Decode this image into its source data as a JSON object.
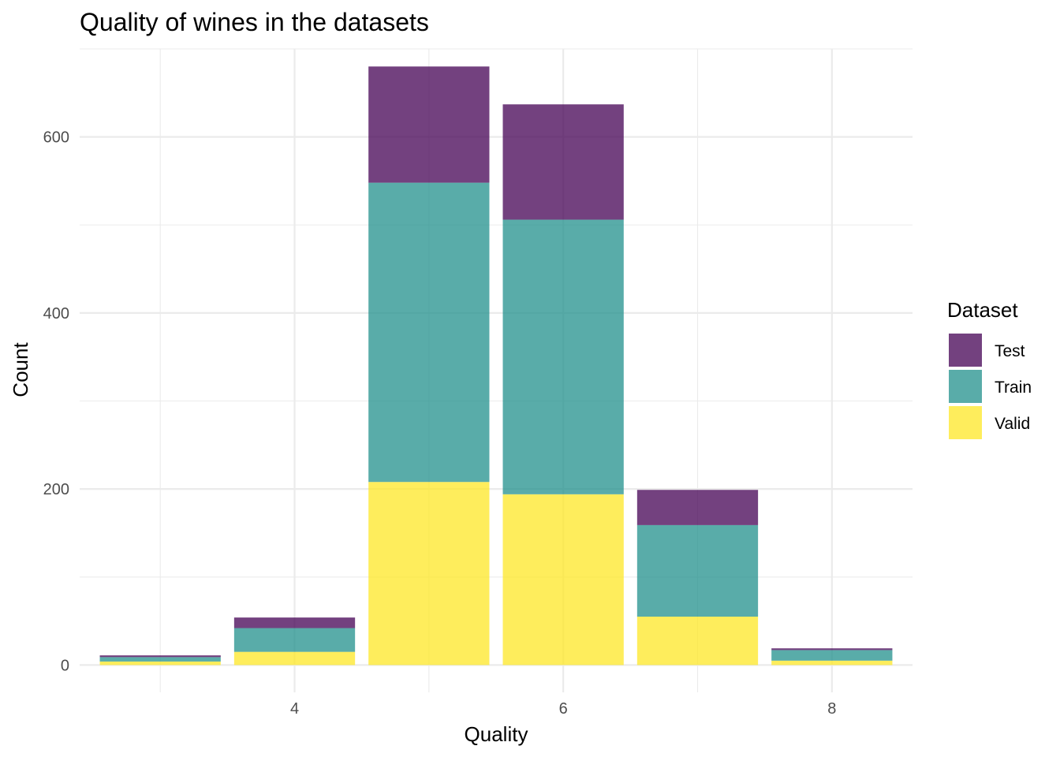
{
  "chart_data": {
    "type": "bar",
    "stacked": true,
    "title": "Quality of wines in the datasets",
    "xlabel": "Quality",
    "ylabel": "Count",
    "categories": [
      3,
      4,
      5,
      6,
      7,
      8
    ],
    "x_ticks": [
      4,
      6,
      8
    ],
    "xlim": [
      2.4,
      8.6
    ],
    "y_ticks": [
      0,
      200,
      400,
      600
    ],
    "ylim": [
      -31,
      700
    ],
    "grid": true,
    "legend": {
      "title": "Dataset",
      "position": "right"
    },
    "series": [
      {
        "name": "Test",
        "color": "#440154",
        "values": [
          2,
          12,
          132,
          131,
          40,
          2
        ]
      },
      {
        "name": "Train",
        "color": "#21908C",
        "values": [
          5,
          27,
          340,
          312,
          104,
          12
        ]
      },
      {
        "name": "Valid",
        "color": "#FDE725",
        "values": [
          4,
          15,
          208,
          194,
          55,
          5
        ]
      }
    ]
  }
}
